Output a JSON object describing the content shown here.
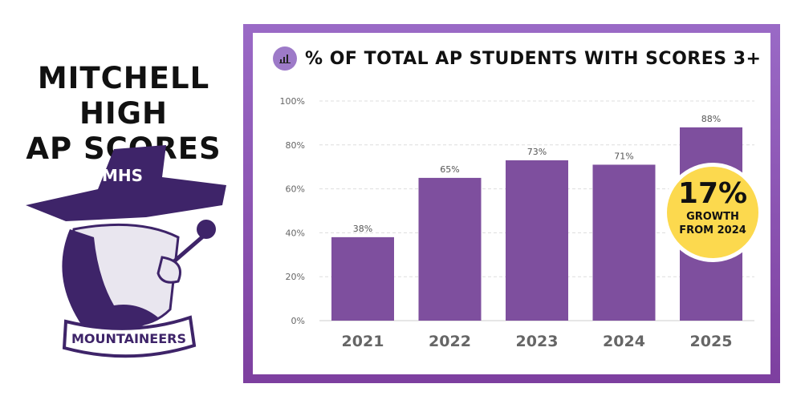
{
  "page": {
    "title_line1": "MITCHELL HIGH",
    "title_line2": "AP SCORES",
    "logo_text": "MOUNTAINEERS",
    "logo_hat_text": "MHS"
  },
  "colors": {
    "frame": "#8a52b5",
    "bar": "#7e4f9e",
    "badge": "#fcd94e",
    "icon_bg": "#9d7ac8"
  },
  "chart_data": {
    "type": "bar",
    "title": "% OF TOTAL AP STUDENTS WITH SCORES 3+",
    "title_icon": "bar-chart-icon",
    "categories": [
      "2021",
      "2022",
      "2023",
      "2024",
      "2025"
    ],
    "values": [
      38,
      65,
      73,
      71,
      88
    ],
    "data_labels": [
      "38%",
      "65%",
      "73%",
      "71%",
      "88%"
    ],
    "ylim": [
      0,
      100
    ],
    "yticks": [
      "0%",
      "20%",
      "40%",
      "60%",
      "80%",
      "100%"
    ],
    "grid": true,
    "annotation": {
      "value": "17%",
      "line1": "GROWTH",
      "line2": "FROM 2024"
    }
  }
}
